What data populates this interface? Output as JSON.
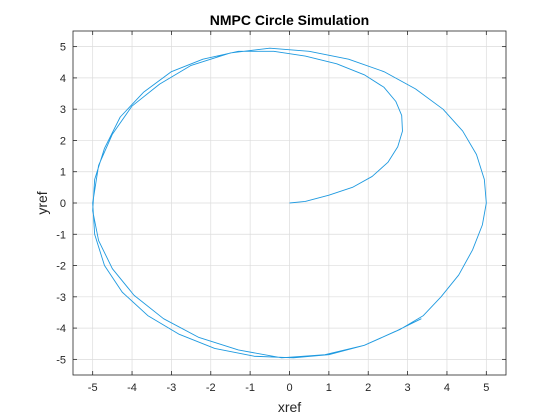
{
  "chart_data": {
    "type": "line",
    "title": "NMPC Circle Simulation",
    "xlabel": "xref",
    "ylabel": "yref",
    "xlim": [
      -5.5,
      5.5
    ],
    "ylim": [
      -5.5,
      5.5
    ],
    "xticks": [
      -5,
      -4,
      -3,
      -2,
      -1,
      0,
      1,
      2,
      3,
      4,
      5
    ],
    "yticks": [
      -5,
      -4,
      -3,
      -2,
      -1,
      0,
      1,
      2,
      3,
      4,
      5
    ],
    "grid": true,
    "series": [
      {
        "color": "#1f9ae0",
        "x": [
          0,
          0.4,
          1.0,
          1.6,
          2.1,
          2.5,
          2.75,
          2.87,
          2.85,
          2.7,
          2.4,
          1.9,
          1.2,
          0.4,
          -0.4,
          -1.3,
          -2.2,
          -3.0,
          -3.7,
          -4.3,
          -4.7,
          -4.95,
          -5.0,
          -4.85,
          -4.5,
          -3.95,
          -3.2,
          -2.3,
          -1.3,
          -0.2,
          0.9,
          1.9,
          2.8,
          3.4,
          3.85,
          4.3,
          4.65,
          4.9,
          5.0,
          4.95,
          4.75,
          4.4,
          3.9,
          3.2,
          2.4,
          1.5,
          0.5,
          -0.5,
          -1.5,
          -2.5,
          -3.3,
          -4.0,
          -4.5,
          -4.85,
          -5.0,
          -4.95,
          -4.7,
          -4.25,
          -3.6,
          -2.8,
          -1.9,
          -0.9,
          0.1,
          1.0,
          1.9,
          2.7,
          3.35
        ],
        "y": [
          0,
          0.05,
          0.25,
          0.5,
          0.85,
          1.3,
          1.8,
          2.3,
          2.8,
          3.25,
          3.7,
          4.1,
          4.45,
          4.7,
          4.85,
          4.85,
          4.6,
          4.2,
          3.55,
          2.75,
          1.75,
          0.75,
          -0.25,
          -1.2,
          -2.1,
          -2.95,
          -3.7,
          -4.3,
          -4.7,
          -4.95,
          -4.85,
          -4.55,
          -4.05,
          -3.6,
          -3.0,
          -2.3,
          -1.5,
          -0.7,
          0.0,
          0.75,
          1.55,
          2.3,
          3.0,
          3.65,
          4.2,
          4.6,
          4.85,
          4.95,
          4.8,
          4.4,
          3.8,
          3.1,
          2.2,
          1.2,
          0.0,
          -1.0,
          -2.0,
          -2.85,
          -3.6,
          -4.2,
          -4.65,
          -4.9,
          -4.95,
          -4.85,
          -4.55,
          -4.1,
          -3.7
        ]
      }
    ]
  }
}
